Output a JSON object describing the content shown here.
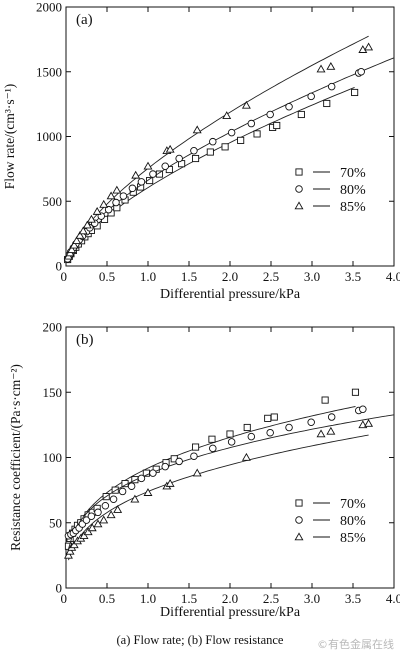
{
  "caption": "(a) Flow rate; (b) Flow resistance",
  "watermark": "©有色金属在线",
  "chart_data": [
    {
      "type": "scatter",
      "panel_label": "(a)",
      "xlabel": "Differential pressure/kPa",
      "ylabel": "Flow rate/(cm³·s⁻¹)",
      "xlim": [
        0,
        4.0
      ],
      "ylim": [
        0,
        2000
      ],
      "xticks": [
        "0",
        "0.5",
        "1.0",
        "1.5",
        "2.0",
        "2.5",
        "3.0",
        "3.5",
        "4.0"
      ],
      "xtick_values": [
        0,
        0.5,
        1.0,
        1.5,
        2.0,
        2.5,
        3.0,
        3.5,
        4.0
      ],
      "yticks": [
        "0",
        "500",
        "1000",
        "1500",
        "2000"
      ],
      "ytick_values": [
        0,
        500,
        1000,
        1500,
        2000
      ],
      "grid": false,
      "legend_position": "right",
      "fit_lines": true,
      "series": [
        {
          "name": "70%",
          "marker": "square",
          "x": [
            0.02,
            0.04,
            0.06,
            0.09,
            0.12,
            0.15,
            0.19,
            0.23,
            0.27,
            0.31,
            0.38,
            0.47,
            0.55,
            0.62,
            0.72,
            0.82,
            0.91,
            1.02,
            1.14,
            1.26,
            1.41,
            1.58,
            1.76,
            1.94,
            2.13,
            2.33,
            2.52,
            2.57,
            2.87,
            3.18,
            3.52
          ],
          "y": [
            50,
            75,
            95,
            120,
            145,
            170,
            195,
            225,
            250,
            275,
            310,
            360,
            410,
            450,
            510,
            570,
            610,
            660,
            710,
            745,
            790,
            830,
            880,
            920,
            970,
            1020,
            1070,
            1085,
            1170,
            1255,
            1340
          ]
        },
        {
          "name": "80%",
          "marker": "circle",
          "x": [
            0.02,
            0.04,
            0.06,
            0.09,
            0.12,
            0.16,
            0.2,
            0.25,
            0.29,
            0.35,
            0.43,
            0.52,
            0.61,
            0.7,
            0.81,
            0.92,
            1.06,
            1.21,
            1.38,
            1.56,
            1.79,
            2.02,
            2.26,
            2.49,
            2.72,
            2.99,
            3.24,
            3.57,
            3.6
          ],
          "y": [
            55,
            85,
            110,
            140,
            170,
            200,
            230,
            265,
            295,
            330,
            385,
            435,
            490,
            540,
            600,
            650,
            710,
            770,
            830,
            890,
            960,
            1030,
            1100,
            1170,
            1230,
            1310,
            1385,
            1490,
            1500
          ]
        },
        {
          "name": "85%",
          "marker": "triangle",
          "x": [
            0.03,
            0.05,
            0.07,
            0.1,
            0.13,
            0.17,
            0.21,
            0.26,
            0.31,
            0.38,
            0.46,
            0.55,
            0.62,
            0.85,
            1.0,
            1.23,
            1.27,
            1.6,
            1.96,
            2.2,
            3.11,
            3.23,
            3.62,
            3.69
          ],
          "y": [
            75,
            100,
            125,
            160,
            195,
            235,
            270,
            315,
            360,
            420,
            475,
            540,
            585,
            700,
            770,
            890,
            900,
            1050,
            1160,
            1240,
            1520,
            1540,
            1670,
            1690
          ]
        }
      ]
    },
    {
      "type": "scatter",
      "panel_label": "(b)",
      "xlabel": "Differential pressure/kPa",
      "ylabel": "Resistance coefficient/(Pa·s·cm⁻²)",
      "xlim": [
        0,
        4.0
      ],
      "ylim": [
        0,
        200
      ],
      "xticks": [
        "0",
        "0.5",
        "1.0",
        "1.5",
        "2.0",
        "2.5",
        "3.0",
        "3.5",
        "4.0"
      ],
      "xtick_values": [
        0,
        0.5,
        1.0,
        1.5,
        2.0,
        2.5,
        3.0,
        3.5,
        4.0
      ],
      "yticks": [
        "0",
        "50",
        "100",
        "150",
        "200"
      ],
      "ytick_values": [
        0,
        50,
        100,
        150,
        200
      ],
      "grid": false,
      "legend_position": "right",
      "fit_lines": true,
      "series": [
        {
          "name": "70%",
          "marker": "square",
          "x": [
            0.03,
            0.05,
            0.08,
            0.11,
            0.14,
            0.18,
            0.22,
            0.27,
            0.32,
            0.38,
            0.49,
            0.6,
            0.72,
            0.84,
            0.98,
            1.1,
            1.22,
            1.32,
            1.58,
            1.78,
            2.0,
            2.21,
            2.46,
            2.54,
            3.16,
            3.53
          ],
          "y": [
            32,
            38,
            42,
            45,
            48,
            50,
            53,
            56,
            58,
            61,
            70,
            75,
            80,
            83,
            88,
            91,
            96,
            99,
            108,
            114,
            118,
            123,
            130,
            131,
            144,
            150
          ]
        },
        {
          "name": "80%",
          "marker": "circle",
          "x": [
            0.03,
            0.06,
            0.09,
            0.12,
            0.16,
            0.2,
            0.25,
            0.31,
            0.39,
            0.48,
            0.58,
            0.69,
            0.8,
            0.92,
            1.06,
            1.21,
            1.38,
            1.56,
            1.79,
            2.02,
            2.26,
            2.49,
            2.72,
            2.99,
            3.24,
            3.57,
            3.62
          ],
          "y": [
            40,
            41,
            42,
            44,
            46,
            49,
            52,
            55,
            58,
            63,
            68,
            74,
            78,
            84,
            88,
            93,
            97,
            101,
            107,
            112,
            116,
            119,
            123,
            127,
            131,
            136,
            137
          ]
        },
        {
          "name": "85%",
          "marker": "triangle",
          "x": [
            0.03,
            0.05,
            0.07,
            0.1,
            0.14,
            0.18,
            0.22,
            0.27,
            0.32,
            0.39,
            0.46,
            0.55,
            0.63,
            0.84,
            1.0,
            1.23,
            1.27,
            1.6,
            2.2,
            3.11,
            3.23,
            3.62,
            3.69
          ],
          "y": [
            25,
            28,
            31,
            33,
            36,
            38,
            40,
            43,
            46,
            49,
            52,
            56,
            60,
            68,
            73,
            78,
            80,
            88,
            100,
            118,
            120,
            125,
            126
          ]
        }
      ]
    }
  ]
}
